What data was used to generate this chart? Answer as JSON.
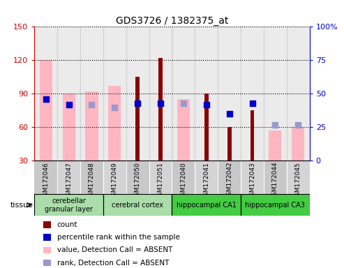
{
  "title": "GDS3726 / 1382375_at",
  "samples": [
    "GSM172046",
    "GSM172047",
    "GSM172048",
    "GSM172049",
    "GSM172050",
    "GSM172051",
    "GSM172040",
    "GSM172041",
    "GSM172042",
    "GSM172043",
    "GSM172044",
    "GSM172045"
  ],
  "count_values": [
    null,
    null,
    null,
    null,
    105,
    122,
    null,
    90,
    60,
    75,
    null,
    null
  ],
  "count_color": "#8B0000",
  "pink_bar_values": [
    120,
    90,
    92,
    97,
    null,
    null,
    85,
    null,
    null,
    null,
    57,
    60
  ],
  "pink_bar_color": "#FFB6C1",
  "blue_dot_right_values": [
    46,
    42,
    42,
    40,
    43,
    43,
    43,
    42,
    35,
    43,
    27,
    27
  ],
  "blue_dot_type": [
    "solid",
    "solid",
    "light",
    "light",
    "solid",
    "solid",
    "light",
    "solid",
    "solid",
    "solid",
    "light",
    "light"
  ],
  "blue_dot_color": "#0000CC",
  "blue_dot_light_color": "#9999CC",
  "left_ylim": [
    30,
    150
  ],
  "left_yticks": [
    30,
    60,
    90,
    120,
    150
  ],
  "right_ylim": [
    0,
    100
  ],
  "right_yticks": [
    0,
    25,
    50,
    75,
    100
  ],
  "left_axis_color": "#CC0000",
  "right_axis_color": "#0000CC",
  "group_info": [
    {
      "start": 0,
      "end": 2,
      "label": "cerebellar\ngranular layer",
      "color": "#AADDAA"
    },
    {
      "start": 3,
      "end": 5,
      "label": "cerebral cortex",
      "color": "#AADDAA"
    },
    {
      "start": 6,
      "end": 8,
      "label": "hippocampal CA1",
      "color": "#44CC44"
    },
    {
      "start": 9,
      "end": 11,
      "label": "hippocampal CA3",
      "color": "#44CC44"
    }
  ],
  "legend_items": [
    {
      "label": "count",
      "color": "#8B0000"
    },
    {
      "label": "percentile rank within the sample",
      "color": "#0000CC"
    },
    {
      "label": "value, Detection Call = ABSENT",
      "color": "#FFB6C1"
    },
    {
      "label": "rank, Detection Call = ABSENT",
      "color": "#9999CC"
    }
  ],
  "pink_bar_width": 0.55,
  "count_bar_width": 0.18,
  "dot_size": 35,
  "background_plot": "#FFFFFF",
  "col_bg_color": "#C8C8C8"
}
